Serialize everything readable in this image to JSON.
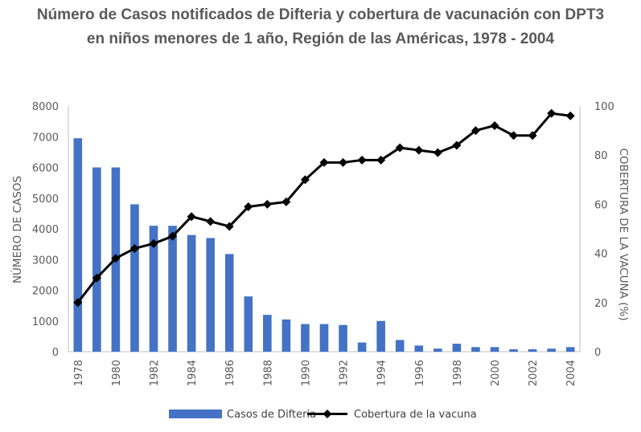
{
  "chart_data": {
    "type": "bar+line",
    "title_lines": [
      "Número de Casos notificados de Difteria y cobertura de vacunación con DPT3",
      "en niños menores de 1 año, Región de las Américas, 1978 - 2004"
    ],
    "x": [
      1978,
      1979,
      1980,
      1981,
      1982,
      1983,
      1984,
      1985,
      1986,
      1987,
      1988,
      1989,
      1990,
      1991,
      1992,
      1993,
      1994,
      1995,
      1996,
      1997,
      1998,
      1999,
      2000,
      2001,
      2002,
      2003,
      2004
    ],
    "x_tick_labels": [
      "1978",
      "1980",
      "1982",
      "1984",
      "1986",
      "1988",
      "1990",
      "1992",
      "1994",
      "1996",
      "1998",
      "2000",
      "2002",
      "2004"
    ],
    "series": [
      {
        "name": "Casos de Difteria",
        "type": "bar",
        "axis": "left",
        "color": "#4472C4",
        "values": [
          6950,
          6000,
          6000,
          4800,
          4100,
          4100,
          3800,
          3700,
          3180,
          1800,
          1200,
          1050,
          900,
          900,
          870,
          300,
          1000,
          380,
          200,
          100,
          260,
          150,
          150,
          80,
          80,
          100,
          150
        ]
      },
      {
        "name": "Cobertura de la vacuna",
        "type": "line",
        "axis": "right",
        "color": "#000000",
        "values": [
          20,
          30,
          38,
          42,
          44,
          47,
          55,
          53,
          51,
          59,
          60,
          61,
          70,
          77,
          77,
          78,
          78,
          83,
          82,
          81,
          84,
          90,
          92,
          88,
          88,
          97,
          96
        ]
      }
    ],
    "ylabel_left": "NÚMERO DE CASOS",
    "ylabel_right": "COBERTURA DE LA VACUNA (%)",
    "ylim_left": [
      0,
      8000
    ],
    "ylim_right": [
      0,
      100
    ],
    "yticks_left": [
      "0",
      "1000",
      "2000",
      "3000",
      "4000",
      "5000",
      "6000",
      "7000",
      "8000"
    ],
    "yticks_right": [
      "0",
      "20",
      "40",
      "60",
      "80",
      "100"
    ],
    "grid": false,
    "legend_position": "bottom"
  }
}
